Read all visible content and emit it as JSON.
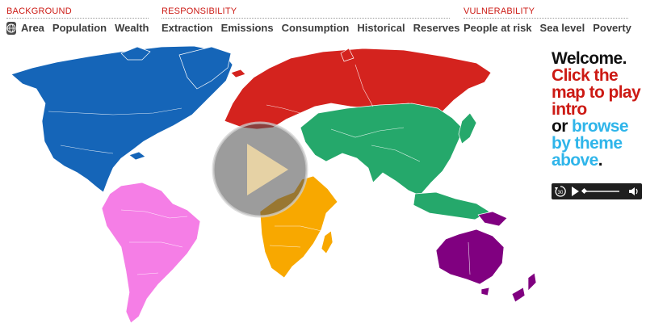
{
  "nav": {
    "background": {
      "title": "BACKGROUND",
      "items": [
        "Area",
        "Population",
        "Wealth"
      ]
    },
    "responsibility": {
      "title": "RESPONSIBILITY",
      "items": [
        "Extraction",
        "Emissions",
        "Consumption",
        "Historical",
        "Reserves"
      ]
    },
    "vulnerability": {
      "title": "VULNERABILITY",
      "items": [
        "People at risk",
        "Sea level",
        "Poverty"
      ]
    }
  },
  "welcome": {
    "line1": "Welcome.",
    "line2": "Click the map to play intro",
    "line3_prefix": "or ",
    "line3_link": "browse by theme above",
    "line3_suffix": "."
  },
  "player": {
    "rewind_label": "30"
  },
  "colors": {
    "accent_red": "#cc1a14",
    "link_blue": "#2fb5ea",
    "north_america": "#1565b8",
    "south_america": "#f57ee6",
    "europe_russia": "#d4231e",
    "asia": "#25a86b",
    "africa": "#f8a800",
    "oceania": "#800080"
  }
}
